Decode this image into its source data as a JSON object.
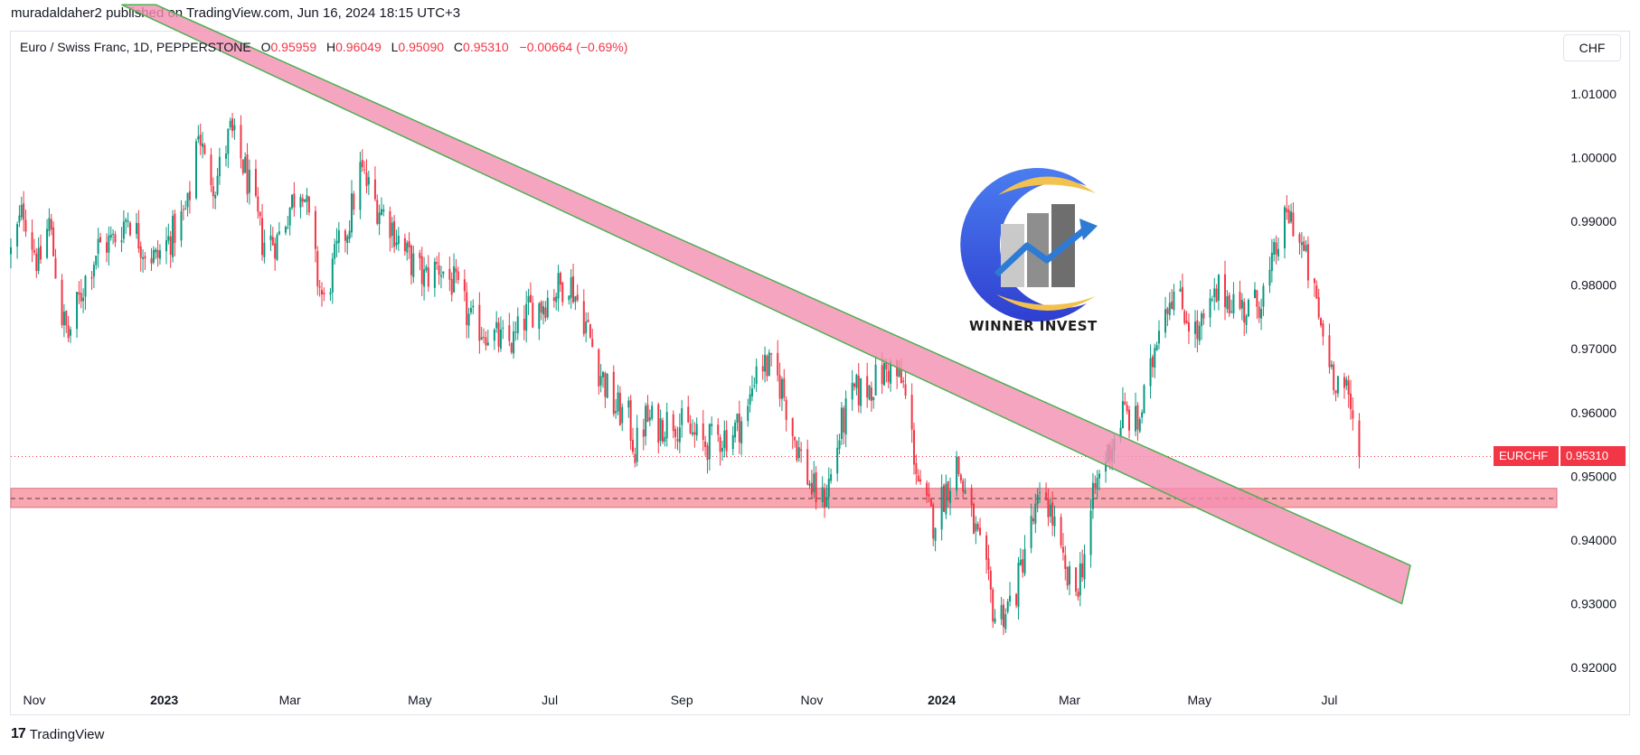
{
  "header": {
    "published_line": "muradaldaher2 published on TradingView.com, Jun 16, 2024 18:15 UTC+3"
  },
  "legend": {
    "symbol": "Euro / Swiss Franc, 1D, PEPPERSTONE",
    "o_label": "O",
    "o_value": "0.95959",
    "h_label": "H",
    "h_value": "0.96049",
    "l_label": "L",
    "l_value": "0.95090",
    "c_label": "C",
    "c_value": "0.95310",
    "change": "−0.00664 (−0.69%)"
  },
  "currency_button": "CHF",
  "price_badge": {
    "symbol": "EURCHF",
    "price": "0.95310"
  },
  "watermark": {
    "text": "WINNER INVEST"
  },
  "footer": {
    "logo": "17",
    "brand": "TradingView"
  },
  "colors": {
    "up": "#089981",
    "down": "#f23645",
    "channel_fill": "#f48fb1",
    "channel_border": "#4caf50",
    "zone_fill": "#f58a96"
  },
  "chart_data": {
    "type": "candlestick",
    "symbol": "EURCHF",
    "ylim": [
      0.915,
      1.0145
    ],
    "y_ticks": [
      "1.01000",
      "1.00000",
      "0.99000",
      "0.98000",
      "0.97000",
      "0.96000",
      "0.95000",
      "0.94000",
      "0.93000",
      "0.92000"
    ],
    "x_ticks": [
      {
        "label": "Nov",
        "date": "2022-11-01",
        "bold": false
      },
      {
        "label": "2023",
        "date": "2023-01-01",
        "bold": true
      },
      {
        "label": "Mar",
        "date": "2023-03-01",
        "bold": false
      },
      {
        "label": "May",
        "date": "2023-05-01",
        "bold": false
      },
      {
        "label": "Jul",
        "date": "2023-07-01",
        "bold": false
      },
      {
        "label": "Sep",
        "date": "2023-09-01",
        "bold": false
      },
      {
        "label": "Nov",
        "date": "2023-11-01",
        "bold": false
      },
      {
        "label": "2024",
        "date": "2024-01-01",
        "bold": true
      },
      {
        "label": "Mar",
        "date": "2024-03-01",
        "bold": false
      },
      {
        "label": "May",
        "date": "2024-05-01",
        "bold": false
      },
      {
        "label": "Jul",
        "date": "2024-07-01",
        "bold": false
      }
    ],
    "last_price": 0.9531,
    "path": [
      [
        "2022-10-21",
        0.985
      ],
      [
        "2022-10-27",
        0.992
      ],
      [
        "2022-11-03",
        0.983
      ],
      [
        "2022-11-08",
        0.99
      ],
      [
        "2022-11-14",
        0.975
      ],
      [
        "2022-11-17",
        0.972
      ],
      [
        "2022-11-25",
        0.981
      ],
      [
        "2022-12-01",
        0.986
      ],
      [
        "2022-12-08",
        0.987
      ],
      [
        "2022-12-15",
        0.991
      ],
      [
        "2022-12-22",
        0.986
      ],
      [
        "2022-12-28",
        0.984
      ],
      [
        "2023-01-05",
        0.988
      ],
      [
        "2023-01-12",
        0.992
      ],
      [
        "2023-01-17",
        1.005
      ],
      [
        "2023-01-20",
        0.999
      ],
      [
        "2023-01-25",
        0.996
      ],
      [
        "2023-02-01",
        1.004
      ],
      [
        "2023-02-08",
        0.998
      ],
      [
        "2023-02-16",
        0.987
      ],
      [
        "2023-02-23",
        0.987
      ],
      [
        "2023-03-03",
        0.994
      ],
      [
        "2023-03-07",
        0.996
      ],
      [
        "2023-03-14",
        0.981
      ],
      [
        "2023-03-17",
        0.977
      ],
      [
        "2023-03-23",
        0.985
      ],
      [
        "2023-03-28",
        0.989
      ],
      [
        "2023-04-03",
        0.998
      ],
      [
        "2023-04-10",
        0.993
      ],
      [
        "2023-04-17",
        0.99
      ],
      [
        "2023-04-24",
        0.985
      ],
      [
        "2023-05-03",
        0.981
      ],
      [
        "2023-05-10",
        0.983
      ],
      [
        "2023-05-17",
        0.98
      ],
      [
        "2023-05-25",
        0.974
      ],
      [
        "2023-06-01",
        0.973
      ],
      [
        "2023-06-08",
        0.971
      ],
      [
        "2023-06-14",
        0.971
      ],
      [
        "2023-06-21",
        0.976
      ],
      [
        "2023-06-27",
        0.977
      ],
      [
        "2023-07-03",
        0.979
      ],
      [
        "2023-07-10",
        0.981
      ],
      [
        "2023-07-17",
        0.975
      ],
      [
        "2023-07-24",
        0.967
      ],
      [
        "2023-07-31",
        0.961
      ],
      [
        "2023-08-07",
        0.959
      ],
      [
        "2023-08-10",
        0.954
      ],
      [
        "2023-08-15",
        0.959
      ],
      [
        "2023-08-21",
        0.958
      ],
      [
        "2023-08-28",
        0.959
      ],
      [
        "2023-09-04",
        0.957
      ],
      [
        "2023-09-11",
        0.955
      ],
      [
        "2023-09-18",
        0.956
      ],
      [
        "2023-09-25",
        0.957
      ],
      [
        "2023-10-02",
        0.96
      ],
      [
        "2023-10-06",
        0.968
      ],
      [
        "2023-10-12",
        0.967
      ],
      [
        "2023-10-18",
        0.964
      ],
      [
        "2023-10-23",
        0.957
      ],
      [
        "2023-10-27",
        0.953
      ],
      [
        "2023-11-01",
        0.948
      ],
      [
        "2023-11-06",
        0.946
      ],
      [
        "2023-11-10",
        0.95
      ],
      [
        "2023-11-15",
        0.958
      ],
      [
        "2023-11-21",
        0.963
      ],
      [
        "2023-11-28",
        0.964
      ],
      [
        "2023-12-04",
        0.966
      ],
      [
        "2023-12-08",
        0.967
      ],
      [
        "2023-12-14",
        0.964
      ],
      [
        "2023-12-18",
        0.956
      ],
      [
        "2023-12-22",
        0.947
      ],
      [
        "2023-12-28",
        0.943
      ],
      [
        "2024-01-03",
        0.948
      ],
      [
        "2024-01-08",
        0.952
      ],
      [
        "2024-01-12",
        0.947
      ],
      [
        "2024-01-17",
        0.941
      ],
      [
        "2024-01-22",
        0.934
      ],
      [
        "2024-01-26",
        0.928
      ],
      [
        "2024-01-31",
        0.929
      ],
      [
        "2024-02-05",
        0.932
      ],
      [
        "2024-02-09",
        0.939
      ],
      [
        "2024-02-15",
        0.945
      ],
      [
        "2024-02-19",
        0.947
      ],
      [
        "2024-02-23",
        0.942
      ],
      [
        "2024-02-28",
        0.934
      ],
      [
        "2024-03-04",
        0.932
      ],
      [
        "2024-03-08",
        0.938
      ],
      [
        "2024-03-13",
        0.948
      ],
      [
        "2024-03-18",
        0.953
      ],
      [
        "2024-03-22",
        0.956
      ],
      [
        "2024-03-26",
        0.96
      ],
      [
        "2024-04-02",
        0.958
      ],
      [
        "2024-04-08",
        0.966
      ],
      [
        "2024-04-12",
        0.975
      ],
      [
        "2024-04-18",
        0.979
      ],
      [
        "2024-04-24",
        0.976
      ],
      [
        "2024-04-30",
        0.972
      ],
      [
        "2024-05-06",
        0.976
      ],
      [
        "2024-05-10",
        0.979
      ],
      [
        "2024-05-16",
        0.978
      ],
      [
        "2024-05-22",
        0.976
      ],
      [
        "2024-05-28",
        0.977
      ],
      [
        "2024-06-03",
        0.981
      ],
      [
        "2024-06-07",
        0.987
      ],
      [
        "2024-06-12",
        0.991
      ],
      [
        "2024-06-14",
        0.99
      ],
      [
        "2024-06-19",
        0.985
      ],
      [
        "2024-06-24",
        0.978
      ],
      [
        "2024-06-28",
        0.972
      ],
      [
        "2024-07-03",
        0.966
      ],
      [
        "2024-07-08",
        0.964
      ],
      [
        "2024-07-11",
        0.96
      ],
      [
        "2024-07-15",
        0.9531
      ]
    ],
    "channel": {
      "upper": [
        [
          "2022-12-28",
          1.024
        ],
        [
          "2024-08-08",
          0.936
        ]
      ],
      "lower": [
        [
          "2022-12-12",
          1.024
        ],
        [
          "2024-08-04",
          0.93
        ]
      ]
    },
    "support_zone": {
      "top": 0.9481,
      "bottom": 0.9451,
      "mid": 0.9465
    },
    "grid": false
  }
}
